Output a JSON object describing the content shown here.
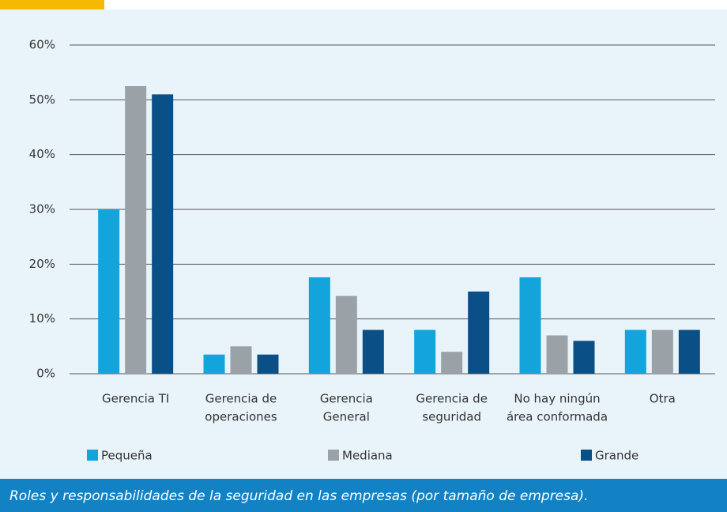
{
  "chart_data": {
    "type": "bar",
    "title": "Roles y responsabilidades de la seguridad en las empresas (por tamaño de empresa).",
    "categories": [
      [
        "Gerencia TI"
      ],
      [
        "Gerencia de",
        "operaciones"
      ],
      [
        "Gerencia",
        "General"
      ],
      [
        "Gerencia de",
        "seguridad"
      ],
      [
        "No hay ningún",
        "área conformada"
      ],
      [
        "Otra"
      ]
    ],
    "series": [
      {
        "name": "Pequeña",
        "color": "#13a4dc",
        "values": [
          30,
          3.5,
          17.6,
          8,
          17.6,
          8
        ]
      },
      {
        "name": "Mediana",
        "color": "#9aa2a7",
        "values": [
          52.5,
          5,
          14.2,
          4,
          7,
          8
        ]
      },
      {
        "name": "Grande",
        "color": "#0b4f87",
        "values": [
          51,
          3.5,
          8,
          15,
          6,
          8
        ]
      }
    ],
    "ylim": [
      0,
      60
    ],
    "yticks": [
      {
        "value": 0,
        "label": "0%"
      },
      {
        "value": 10,
        "label": "10%"
      },
      {
        "value": 20,
        "label": "20%"
      },
      {
        "value": 30,
        "label": "30%"
      },
      {
        "value": 40,
        "label": "40%"
      },
      {
        "value": 50,
        "label": "50%"
      },
      {
        "value": 60,
        "label": "60%"
      }
    ],
    "grid": true,
    "legend": "bottom"
  }
}
